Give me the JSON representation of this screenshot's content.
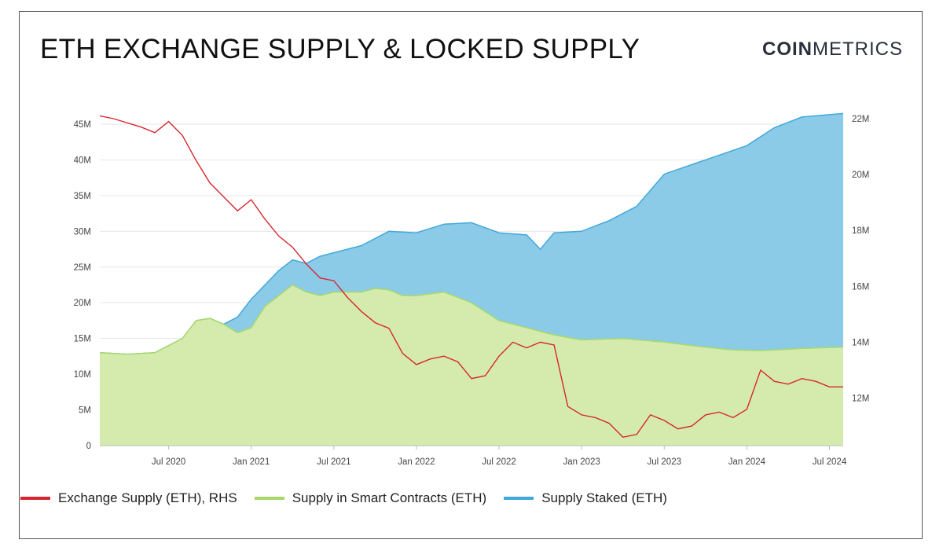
{
  "header": {
    "title": "ETH EXCHANGE SUPPLY & LOCKED SUPPLY",
    "logo_bold": "COIN",
    "logo_light": "METRICS"
  },
  "colors": {
    "exchange": "#d7262f",
    "contracts": "#a6d96a",
    "staked": "#41a8dc"
  },
  "chart_data": {
    "type": "area",
    "x_ticks": [
      "Jul 2020",
      "Jan 2021",
      "Jul 2021",
      "Jan 2022",
      "Jul 2022",
      "Jan 2023",
      "Jul 2023",
      "Jan 2024",
      "Jul 2024"
    ],
    "x_range": [
      "2020-02",
      "2024-08"
    ],
    "left_axis": {
      "ticks": [
        "0",
        "5M",
        "10M",
        "15M",
        "20M",
        "25M",
        "30M",
        "35M",
        "40M",
        "45M"
      ],
      "ylim": [
        0,
        45
      ]
    },
    "right_axis": {
      "ticks": [
        "12M",
        "14M",
        "16M",
        "18M",
        "20M",
        "22M"
      ],
      "ylim": [
        10.3,
        22
      ]
    },
    "legend": [
      {
        "label": "Exchange Supply (ETH), RHS",
        "color": "#d7262f"
      },
      {
        "label": "Supply in Smart Contracts (ETH)",
        "color": "#a6d96a"
      },
      {
        "label": "Supply Staked (ETH)",
        "color": "#41a8dc"
      }
    ],
    "series": [
      {
        "name": "Supply in Smart Contracts (ETH)",
        "axis": "left",
        "points": [
          [
            "2020-02",
            13.0
          ],
          [
            "2020-04",
            12.8
          ],
          [
            "2020-06",
            13.0
          ],
          [
            "2020-08",
            15.0
          ],
          [
            "2020-09",
            17.5
          ],
          [
            "2020-10",
            17.8
          ],
          [
            "2020-11",
            17.0
          ],
          [
            "2020-12",
            15.8
          ],
          [
            "2021-01",
            16.5
          ],
          [
            "2021-02",
            19.5
          ],
          [
            "2021-03",
            21.0
          ],
          [
            "2021-04",
            22.5
          ],
          [
            "2021-05",
            21.5
          ],
          [
            "2021-06",
            21.0
          ],
          [
            "2021-07",
            21.5
          ],
          [
            "2021-08",
            21.5
          ],
          [
            "2021-09",
            21.5
          ],
          [
            "2021-10",
            22.0
          ],
          [
            "2021-11",
            21.8
          ],
          [
            "2021-12",
            21.0
          ],
          [
            "2022-01",
            21.0
          ],
          [
            "2022-03",
            21.5
          ],
          [
            "2022-05",
            20.0
          ],
          [
            "2022-07",
            17.5
          ],
          [
            "2022-09",
            16.5
          ],
          [
            "2022-11",
            15.5
          ],
          [
            "2023-01",
            14.8
          ],
          [
            "2023-04",
            15.0
          ],
          [
            "2023-07",
            14.5
          ],
          [
            "2023-09",
            14.0
          ],
          [
            "2023-12",
            13.4
          ],
          [
            "2024-02",
            13.3
          ],
          [
            "2024-05",
            13.6
          ],
          [
            "2024-08",
            13.8
          ]
        ]
      },
      {
        "name": "Supply Staked (ETH)",
        "axis": "left",
        "points": [
          [
            "2020-02",
            13.0
          ],
          [
            "2020-04",
            12.8
          ],
          [
            "2020-06",
            13.0
          ],
          [
            "2020-08",
            15.0
          ],
          [
            "2020-09",
            17.5
          ],
          [
            "2020-10",
            17.8
          ],
          [
            "2020-11",
            17.0
          ],
          [
            "2020-12",
            18.0
          ],
          [
            "2021-01",
            20.5
          ],
          [
            "2021-02",
            22.5
          ],
          [
            "2021-03",
            24.5
          ],
          [
            "2021-04",
            26.0
          ],
          [
            "2021-05",
            25.5
          ],
          [
            "2021-06",
            26.5
          ],
          [
            "2021-07",
            27.0
          ],
          [
            "2021-09",
            28.0
          ],
          [
            "2021-11",
            30.0
          ],
          [
            "2022-01",
            29.8
          ],
          [
            "2022-03",
            31.0
          ],
          [
            "2022-05",
            31.2
          ],
          [
            "2022-07",
            29.8
          ],
          [
            "2022-09",
            29.5
          ],
          [
            "2022-10",
            27.5
          ],
          [
            "2022-11",
            29.8
          ],
          [
            "2023-01",
            30.0
          ],
          [
            "2023-03",
            31.5
          ],
          [
            "2023-05",
            33.5
          ],
          [
            "2023-07",
            38.0
          ],
          [
            "2023-10",
            40.0
          ],
          [
            "2024-01",
            42.0
          ],
          [
            "2024-03",
            44.5
          ],
          [
            "2024-05",
            46.0
          ],
          [
            "2024-08",
            46.5
          ]
        ]
      },
      {
        "name": "Exchange Supply (ETH), RHS",
        "axis": "right",
        "points": [
          [
            "2020-02",
            22.1
          ],
          [
            "2020-03",
            22.0
          ],
          [
            "2020-05",
            21.7
          ],
          [
            "2020-06",
            21.5
          ],
          [
            "2020-07",
            21.9
          ],
          [
            "2020-08",
            21.4
          ],
          [
            "2020-09",
            20.5
          ],
          [
            "2020-10",
            19.7
          ],
          [
            "2020-11",
            19.2
          ],
          [
            "2020-12",
            18.7
          ],
          [
            "2021-01",
            19.1
          ],
          [
            "2021-02",
            18.4
          ],
          [
            "2021-03",
            17.8
          ],
          [
            "2021-04",
            17.4
          ],
          [
            "2021-05",
            16.8
          ],
          [
            "2021-06",
            16.3
          ],
          [
            "2021-07",
            16.2
          ],
          [
            "2021-08",
            15.6
          ],
          [
            "2021-09",
            15.1
          ],
          [
            "2021-10",
            14.7
          ],
          [
            "2021-11",
            14.5
          ],
          [
            "2021-12",
            13.6
          ],
          [
            "2022-01",
            13.2
          ],
          [
            "2022-02",
            13.4
          ],
          [
            "2022-03",
            13.5
          ],
          [
            "2022-04",
            13.3
          ],
          [
            "2022-05",
            12.7
          ],
          [
            "2022-06",
            12.8
          ],
          [
            "2022-07",
            13.5
          ],
          [
            "2022-08",
            14.0
          ],
          [
            "2022-09",
            13.8
          ],
          [
            "2022-10",
            14.0
          ],
          [
            "2022-11",
            13.9
          ],
          [
            "2022-12",
            11.7
          ],
          [
            "2023-01",
            11.4
          ],
          [
            "2023-02",
            11.3
          ],
          [
            "2023-03",
            11.1
          ],
          [
            "2023-04",
            10.6
          ],
          [
            "2023-05",
            10.7
          ],
          [
            "2023-06",
            11.4
          ],
          [
            "2023-07",
            11.2
          ],
          [
            "2023-08",
            10.9
          ],
          [
            "2023-09",
            11.0
          ],
          [
            "2023-10",
            11.4
          ],
          [
            "2023-11",
            11.5
          ],
          [
            "2023-12",
            11.3
          ],
          [
            "2024-01",
            11.6
          ],
          [
            "2024-02",
            13.0
          ],
          [
            "2024-03",
            12.6
          ],
          [
            "2024-04",
            12.5
          ],
          [
            "2024-05",
            12.7
          ],
          [
            "2024-06",
            12.6
          ],
          [
            "2024-07",
            12.4
          ],
          [
            "2024-08",
            12.4
          ]
        ]
      }
    ]
  }
}
